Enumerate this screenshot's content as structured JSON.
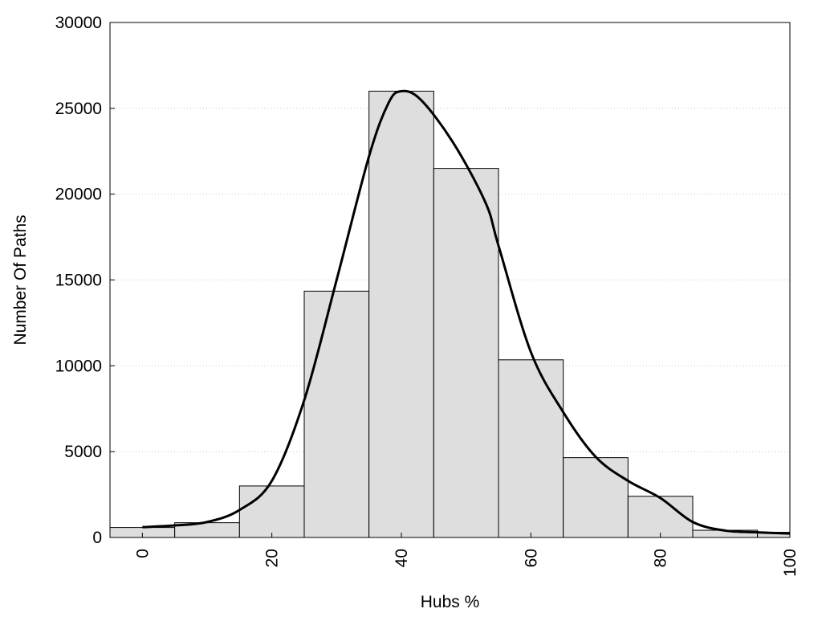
{
  "chart_data": {
    "type": "bar",
    "subtype": "histogram-with-density-curve",
    "xlabel": "Hubs %",
    "ylabel": "Number Of Paths",
    "xlim": [
      -5,
      100
    ],
    "ylim": [
      0,
      30000
    ],
    "x_ticks": [
      0,
      20,
      40,
      60,
      80,
      100
    ],
    "y_ticks": [
      0,
      5000,
      10000,
      15000,
      20000,
      25000,
      30000
    ],
    "grid": "horizontal dotted",
    "bar_color": "#dedede",
    "bar_edge_color": "#000000",
    "curve_color": "#000000",
    "bins": [
      {
        "start": -5,
        "end": 5,
        "value": 580
      },
      {
        "start": 5,
        "end": 15,
        "value": 860
      },
      {
        "start": 15,
        "end": 25,
        "value": 3000
      },
      {
        "start": 25,
        "end": 35,
        "value": 14350
      },
      {
        "start": 35,
        "end": 45,
        "value": 26000
      },
      {
        "start": 45,
        "end": 55,
        "value": 21500
      },
      {
        "start": 55,
        "end": 65,
        "value": 10350
      },
      {
        "start": 65,
        "end": 75,
        "value": 4650
      },
      {
        "start": 75,
        "end": 85,
        "value": 2400
      },
      {
        "start": 85,
        "end": 95,
        "value": 420
      },
      {
        "start": 95,
        "end": 100,
        "value": 300
      }
    ],
    "curve": {
      "x": [
        0,
        5,
        10,
        15,
        20,
        25,
        30,
        35,
        38,
        40,
        43,
        48,
        53,
        55,
        60,
        65,
        70,
        75,
        80,
        85,
        90,
        95,
        100
      ],
      "y": [
        600,
        700,
        900,
        1600,
        3300,
        8000,
        15000,
        22200,
        25300,
        26000,
        25500,
        23000,
        19500,
        17000,
        10800,
        7300,
        4700,
        3300,
        2300,
        900,
        400,
        300,
        230
      ]
    }
  }
}
